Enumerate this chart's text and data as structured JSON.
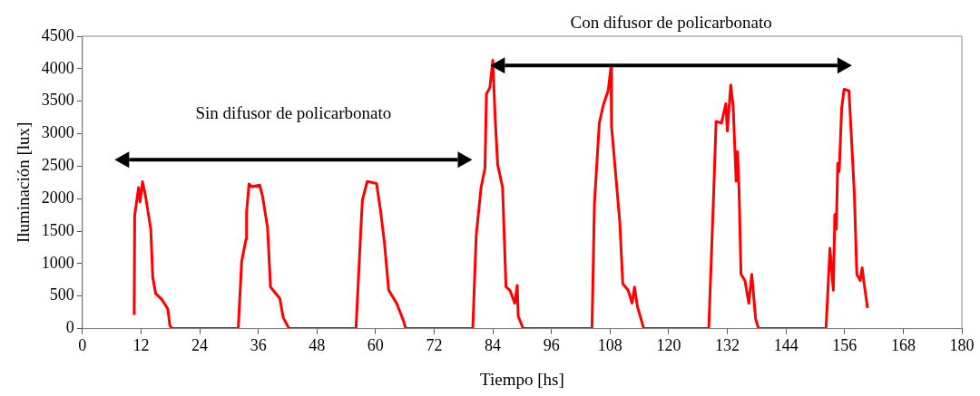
{
  "chart_data": {
    "type": "line",
    "xlabel": "Tiempo [hs]",
    "ylabel": "Iluminación [lux]",
    "annotations": [
      "Sin difusor de policarbonato",
      "Con difusor de policarbonato"
    ],
    "x": [
      10.6,
      10.7,
      11.5,
      11.8,
      12.3,
      12.9,
      14.0,
      14.4,
      15.0,
      16.3,
      17.5,
      17.9,
      18.4,
      31.9,
      32.6,
      33.5,
      33.6,
      34.1,
      34.7,
      36.3,
      36.9,
      37.9,
      38.5,
      40.4,
      41.1,
      42.3,
      56.0,
      56.8,
      57.3,
      58.3,
      60.2,
      61.0,
      61.8,
      62.7,
      64.3,
      65.6,
      66.2,
      79.9,
      80.6,
      81.6,
      82.4,
      82.7,
      83.4,
      84.0,
      84.5,
      85.0,
      86.0,
      86.7,
      87.5,
      88.5,
      89.0,
      89.2,
      90.2,
      104.3,
      104.8,
      105.8,
      106.6,
      107.6,
      108.2,
      108.3,
      109.1,
      110.0,
      110.6,
      111.7,
      112.5,
      113.0,
      113.6,
      114.9,
      128.2,
      129.2,
      129.7,
      130.8,
      131.7,
      132.0,
      132.7,
      133.2,
      133.8,
      134.1,
      134.4,
      134.8,
      135.6,
      136.4,
      137.0,
      137.8,
      138.4,
      152.2,
      153.0,
      153.7,
      154.0,
      154.3,
      154.6,
      154.9,
      155.4,
      155.9,
      156.9,
      158.0,
      158.5,
      159.2,
      159.6,
      160.0,
      160.7
    ],
    "series": [
      {
        "color": "#ff0000",
        "values": [
          210,
          1740,
          2170,
          1950,
          2260,
          2050,
          1530,
          790,
          540,
          445,
          300,
          45,
          0,
          0,
          1035,
          1380,
          1780,
          2225,
          2185,
          2210,
          2025,
          1555,
          640,
          465,
          170,
          0,
          0,
          1235,
          1975,
          2265,
          2235,
          1830,
          1335,
          590,
          390,
          145,
          0,
          0,
          1430,
          2175,
          2470,
          3610,
          3710,
          4130,
          3215,
          2520,
          2175,
          640,
          590,
          390,
          665,
          190,
          0,
          0,
          1925,
          3165,
          3435,
          3660,
          4030,
          3115,
          2420,
          1630,
          690,
          590,
          390,
          640,
          340,
          0,
          0,
          2075,
          3190,
          3165,
          3460,
          3040,
          3750,
          3410,
          2270,
          2720,
          2125,
          835,
          740,
          390,
          835,
          145,
          0,
          0,
          1235,
          590,
          1755,
          1530,
          2545,
          2420,
          3390,
          3685,
          3660,
          2075,
          835,
          740,
          935,
          690,
          315
        ]
      }
    ],
    "xlim": [
      0,
      180
    ],
    "xticks": [
      0,
      12,
      24,
      36,
      48,
      60,
      72,
      84,
      96,
      108,
      120,
      132,
      144,
      156,
      168,
      180
    ],
    "ylim": [
      0,
      4500
    ],
    "yticks": [
      0,
      500,
      1000,
      1500,
      2000,
      2500,
      3000,
      3500,
      4000,
      4500
    ],
    "grid": false,
    "legend": false,
    "marker": "none",
    "line_style": "solid"
  }
}
